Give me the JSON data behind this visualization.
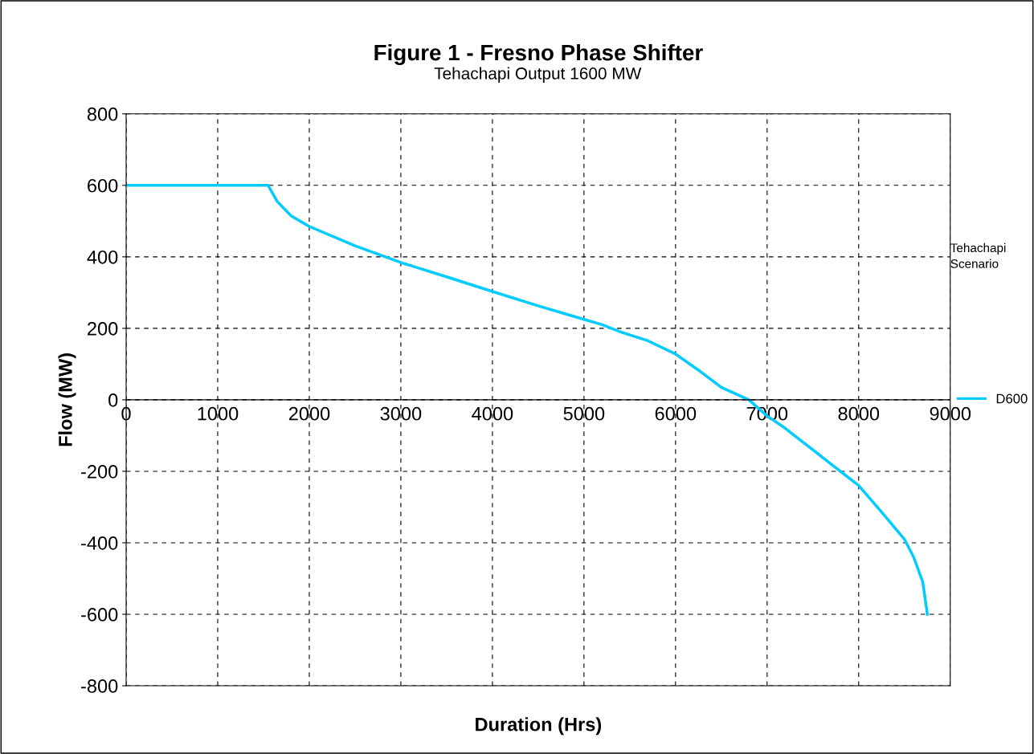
{
  "chart_data": {
    "type": "line",
    "title": "Figure 1 - Fresno Phase Shifter",
    "subtitle": "Tehachapi Output 1600 MW",
    "xlabel": "Duration (Hrs)",
    "ylabel": "Flow (MW)",
    "legend_title": "Tehachapi Scenario",
    "x": [
      0,
      500,
      1000,
      1550,
      1650,
      1800,
      2000,
      2500,
      3000,
      3500,
      4000,
      4500,
      5000,
      5200,
      5400,
      5700,
      6000,
      6250,
      6500,
      6800,
      7000,
      7200,
      7400,
      7700,
      8000,
      8270,
      8500,
      8600,
      8700,
      8750
    ],
    "series": [
      {
        "name": "D600",
        "color": "#00ccff",
        "values": [
          600,
          600,
          600,
          600,
          555,
          515,
          485,
          431,
          384,
          344,
          303,
          263,
          225,
          210,
          190,
          165,
          128,
          83,
          35,
          0,
          -45,
          -80,
          -120,
          -180,
          -240,
          -320,
          -390,
          -440,
          -510,
          -600
        ]
      }
    ],
    "xlim": [
      0,
      9000
    ],
    "xticks": [
      0,
      1000,
      2000,
      3000,
      4000,
      5000,
      6000,
      7000,
      8000,
      9000
    ],
    "ylim": [
      -800,
      800
    ],
    "yticks": [
      -800,
      -600,
      -400,
      -200,
      0,
      200,
      400,
      600,
      800
    ],
    "grid": true,
    "legend": "right",
    "line_style": "solid",
    "marker": "none"
  }
}
